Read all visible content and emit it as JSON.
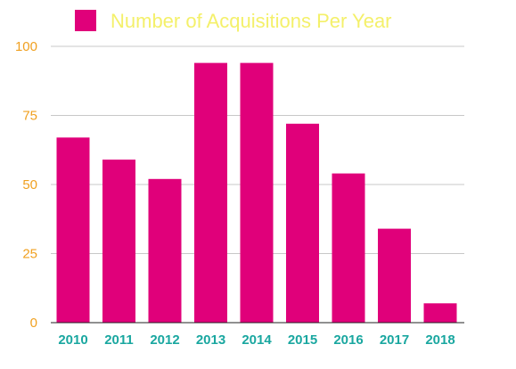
{
  "chart_data": {
    "type": "bar",
    "categories": [
      "2010",
      "2011",
      "2012",
      "2013",
      "2014",
      "2015",
      "2016",
      "2017",
      "2018"
    ],
    "series": [
      {
        "name": "Number of Acquisitions Per Year",
        "values": [
          67,
          59,
          52,
          94,
          94,
          72,
          54,
          34,
          7
        ]
      }
    ],
    "ylim": [
      0,
      100
    ],
    "yticks": [
      "0",
      "25",
      "50",
      "75",
      "100"
    ],
    "grid": true,
    "legend_position": "top",
    "colors": {
      "bar": "#e0007a",
      "legend_text": "#f4f06a",
      "y_tick": "#f0a020",
      "x_tick": "#1aa7a0",
      "grid": "#c8c8c8",
      "axis": "#222222"
    }
  }
}
